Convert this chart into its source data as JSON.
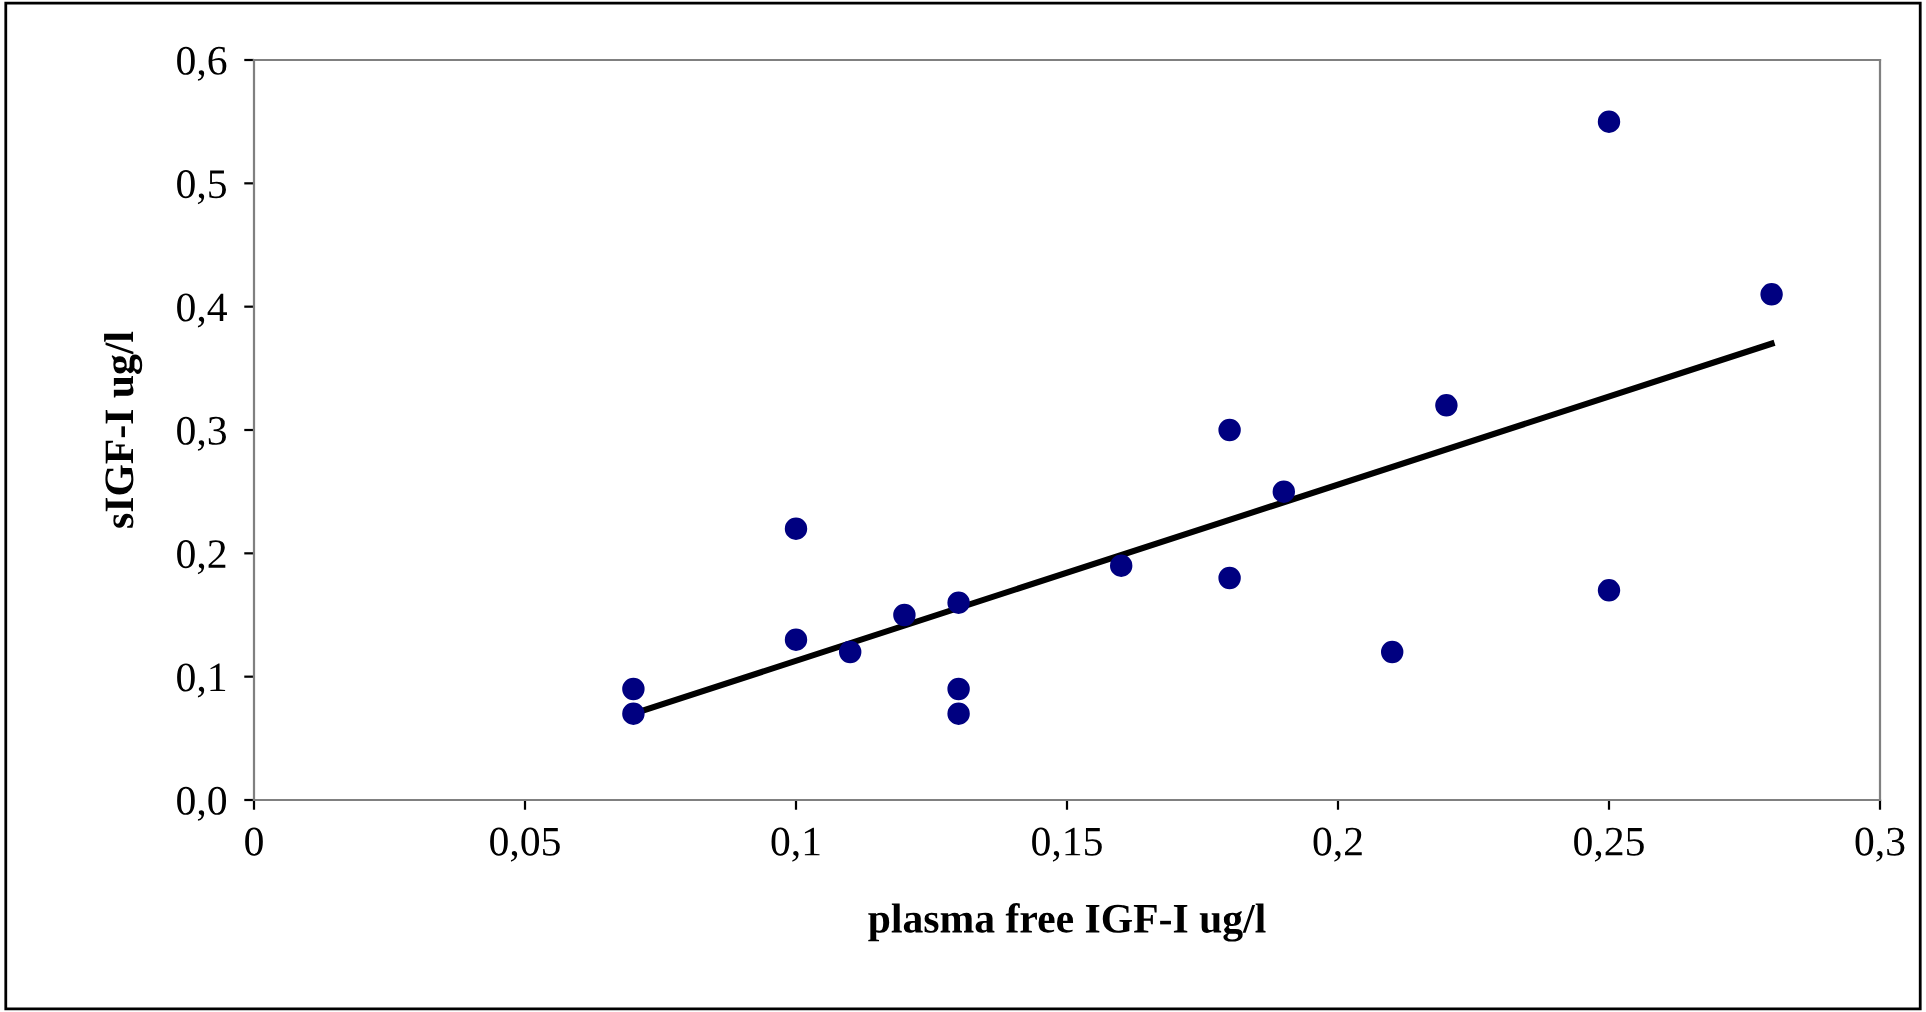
{
  "chart_data": {
    "type": "scatter",
    "xlabel": "plasma free IGF-I ug/l",
    "ylabel": "sIGF-I ug/l",
    "xlim": [
      0,
      0.3
    ],
    "ylim": [
      0,
      0.6
    ],
    "xticks": [
      0,
      {
        "value": 0.05,
        "label": "0,05"
      },
      {
        "value": 0.1,
        "label": "0,1"
      },
      {
        "value": 0.15,
        "label": "0,15"
      },
      {
        "value": 0.2,
        "label": "0,2"
      },
      {
        "value": 0.25,
        "label": "0,25"
      },
      {
        "value": 0.3,
        "label": "0,3"
      }
    ],
    "yticks": [
      {
        "value": 0,
        "label": "0,0"
      },
      {
        "value": 0.1,
        "label": "0,1"
      },
      {
        "value": 0.2,
        "label": "0,2"
      },
      {
        "value": 0.3,
        "label": "0,3"
      },
      {
        "value": 0.4,
        "label": "0,4"
      },
      {
        "value": 0.5,
        "label": "0,5"
      },
      {
        "value": 0.6,
        "label": "0,6"
      }
    ],
    "grid": false,
    "legend": false,
    "series": [
      {
        "color": "#000080",
        "marker": "circle",
        "x": [
          0.07,
          0.07,
          0.1,
          0.1,
          0.11,
          0.12,
          0.13,
          0.13,
          0.13,
          0.16,
          0.18,
          0.18,
          0.19,
          0.21,
          0.22,
          0.25,
          0.25,
          0.28
        ],
        "values": [
          0.09,
          0.07,
          0.22,
          0.13,
          0.12,
          0.15,
          0.16,
          0.09,
          0.07,
          0.19,
          0.3,
          0.18,
          0.25,
          0.12,
          0.32,
          0.55,
          0.17,
          0.41
        ]
      },
      {
        "type": "line",
        "color": "#000000",
        "marker": "none",
        "line_style": "solid",
        "x": [
          0.07,
          0.28
        ],
        "values": [
          0.07,
          0.37
        ]
      }
    ]
  }
}
